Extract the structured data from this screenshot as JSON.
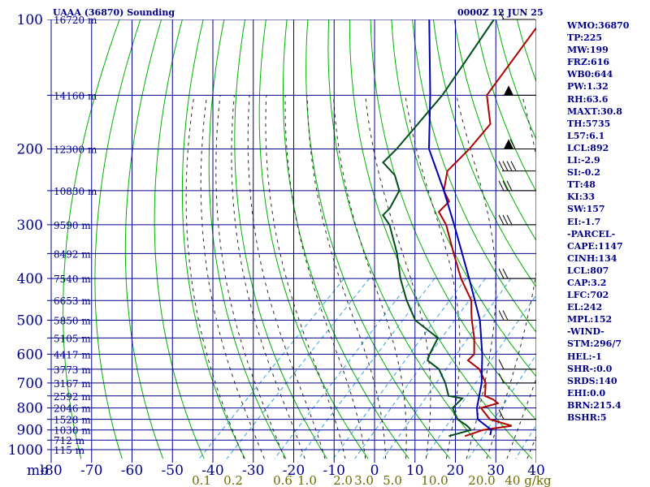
{
  "title_left": "UAAA (36870) Sounding",
  "title_right": "0000Z 12 JUN 25",
  "chart_data": {
    "type": "skew-t log-p sounding",
    "pressure_axis": {
      "label": "mb",
      "ticks": [
        100,
        200,
        300,
        400,
        500,
        600,
        700,
        800,
        900,
        1000
      ],
      "range": [
        100,
        1050
      ],
      "scale": "log"
    },
    "temperature_axis": {
      "ticks": [
        -80,
        -70,
        -60,
        -50,
        -40,
        -30,
        -20,
        -10,
        0,
        10,
        20,
        30,
        40
      ],
      "range": [
        -80,
        40
      ]
    },
    "mixing_ratio_labels": [
      "0.1",
      "0.2",
      "0.6",
      "1.0",
      "2.0",
      "3.0",
      "5.0",
      "10.0",
      "20.0",
      "40 g/kg"
    ],
    "height_labels": [
      {
        "p": 100,
        "label": "16720 m"
      },
      {
        "p": 150,
        "label": "14160 m"
      },
      {
        "p": 200,
        "label": "12300 m"
      },
      {
        "p": 250,
        "label": "10830 m"
      },
      {
        "p": 300,
        "label": "9590 m"
      },
      {
        "p": 350,
        "label": "8492 m"
      },
      {
        "p": 400,
        "label": "7540 m"
      },
      {
        "p": 450,
        "label": "6653 m"
      },
      {
        "p": 500,
        "label": "5850 m"
      },
      {
        "p": 550,
        "label": "5105 m"
      },
      {
        "p": 600,
        "label": "4417 m"
      },
      {
        "p": 650,
        "label": "3773 m"
      },
      {
        "p": 700,
        "label": "3167 m"
      },
      {
        "p": 750,
        "label": "2592 m"
      },
      {
        "p": 800,
        "label": "2046 m"
      },
      {
        "p": 850,
        "label": "1528 m"
      },
      {
        "p": 900,
        "label": "1030 m"
      },
      {
        "p": 950,
        "label": "712 m"
      },
      {
        "p": 1000,
        "label": "115 m"
      }
    ],
    "series": [
      {
        "name": "temperature",
        "color": "#b00000",
        "points": [
          {
            "p": 100,
            "t": -65
          },
          {
            "p": 150,
            "t": -60
          },
          {
            "p": 175,
            "t": -52
          },
          {
            "p": 200,
            "t": -51
          },
          {
            "p": 225,
            "t": -51
          },
          {
            "p": 250,
            "t": -47
          },
          {
            "p": 265,
            "t": -43
          },
          {
            "p": 280,
            "t": -43
          },
          {
            "p": 300,
            "t": -38
          },
          {
            "p": 350,
            "t": -29
          },
          {
            "p": 400,
            "t": -21
          },
          {
            "p": 450,
            "t": -13
          },
          {
            "p": 480,
            "t": -10
          },
          {
            "p": 500,
            "t": -8
          },
          {
            "p": 550,
            "t": -3
          },
          {
            "p": 600,
            "t": 1
          },
          {
            "p": 620,
            "t": 1
          },
          {
            "p": 650,
            "t": 6
          },
          {
            "p": 700,
            "t": 11
          },
          {
            "p": 750,
            "t": 14
          },
          {
            "p": 765,
            "t": 17
          },
          {
            "p": 780,
            "t": 19
          },
          {
            "p": 800,
            "t": 16
          },
          {
            "p": 850,
            "t": 21
          },
          {
            "p": 880,
            "t": 28
          },
          {
            "p": 900,
            "t": 22
          },
          {
            "p": 930,
            "t": 19
          }
        ]
      },
      {
        "name": "dewpoint",
        "color": "#004d1a",
        "points": [
          {
            "p": 100,
            "t": -77
          },
          {
            "p": 150,
            "t": -71
          },
          {
            "p": 200,
            "t": -69
          },
          {
            "p": 215,
            "t": -69
          },
          {
            "p": 230,
            "t": -63
          },
          {
            "p": 250,
            "t": -58
          },
          {
            "p": 275,
            "t": -56
          },
          {
            "p": 285,
            "t": -56
          },
          {
            "p": 300,
            "t": -52
          },
          {
            "p": 350,
            "t": -43
          },
          {
            "p": 400,
            "t": -36
          },
          {
            "p": 450,
            "t": -29
          },
          {
            "p": 500,
            "t": -22
          },
          {
            "p": 550,
            "t": -12
          },
          {
            "p": 600,
            "t": -10
          },
          {
            "p": 620,
            "t": -9
          },
          {
            "p": 650,
            "t": -4
          },
          {
            "p": 700,
            "t": 1
          },
          {
            "p": 750,
            "t": 5
          },
          {
            "p": 760,
            "t": 9
          },
          {
            "p": 800,
            "t": 9
          },
          {
            "p": 850,
            "t": 13
          },
          {
            "p": 880,
            "t": 17
          },
          {
            "p": 900,
            "t": 19
          },
          {
            "p": 930,
            "t": 15
          }
        ]
      },
      {
        "name": "parcel",
        "color": "#0000b0",
        "points": [
          {
            "p": 100,
            "t": -93
          },
          {
            "p": 150,
            "t": -74
          },
          {
            "p": 200,
            "t": -61
          },
          {
            "p": 250,
            "t": -47
          },
          {
            "p": 300,
            "t": -36
          },
          {
            "p": 400,
            "t": -19
          },
          {
            "p": 500,
            "t": -6
          },
          {
            "p": 600,
            "t": 3
          },
          {
            "p": 700,
            "t": 10
          },
          {
            "p": 800,
            "t": 15
          },
          {
            "p": 850,
            "t": 18
          },
          {
            "p": 900,
            "t": 24
          },
          {
            "p": 925,
            "t": 25
          }
        ]
      }
    ],
    "wind_barbs": [
      {
        "p": 100,
        "speed_kt": 10
      },
      {
        "p": 150,
        "speed_kt": 50
      },
      {
        "p": 200,
        "speed_kt": 60
      },
      {
        "p": 225,
        "speed_kt": 40
      },
      {
        "p": 250,
        "speed_kt": 30
      },
      {
        "p": 300,
        "speed_kt": 30
      },
      {
        "p": 400,
        "speed_kt": 20
      },
      {
        "p": 500,
        "speed_kt": 20
      },
      {
        "p": 650,
        "speed_kt": 10
      },
      {
        "p": 700,
        "speed_kt": 10
      },
      {
        "p": 850,
        "speed_kt": 10
      }
    ],
    "grid": true
  },
  "indices": [
    "WMO:36870",
    "TP:225",
    "MW:199",
    "FRZ:616",
    "WB0:644",
    "PW:1.32",
    "RH:63.6",
    "MAXT:30.8",
    "TH:5735",
    "L57:6.1",
    "LCL:892",
    "LI:-2.9",
    "SI:-0.2",
    "TT:48",
    "KI:33",
    "SW:157",
    "EI:-1.7",
    "-PARCEL-",
    "CAPE:1147",
    "CINH:134",
    "LCL:807",
    "CAP:3.2",
    "LFC:702",
    "EL:242",
    "MPL:152",
    "-WIND-",
    "STM:296/7",
    "HEL:-1",
    "SHR-:0.0",
    "SRDS:140",
    "EHI:0.0",
    "BRN:215.4",
    "BSHR:5"
  ],
  "colors": {
    "grid": "#00008b",
    "isotherms": "#00008b",
    "dry_adiabats": "#00b000",
    "moist_adiabats": "#2a2a2a",
    "mixing_ratio": "#3aa0e0",
    "text": "#00008b",
    "mixing_label": "#6b6b00"
  }
}
